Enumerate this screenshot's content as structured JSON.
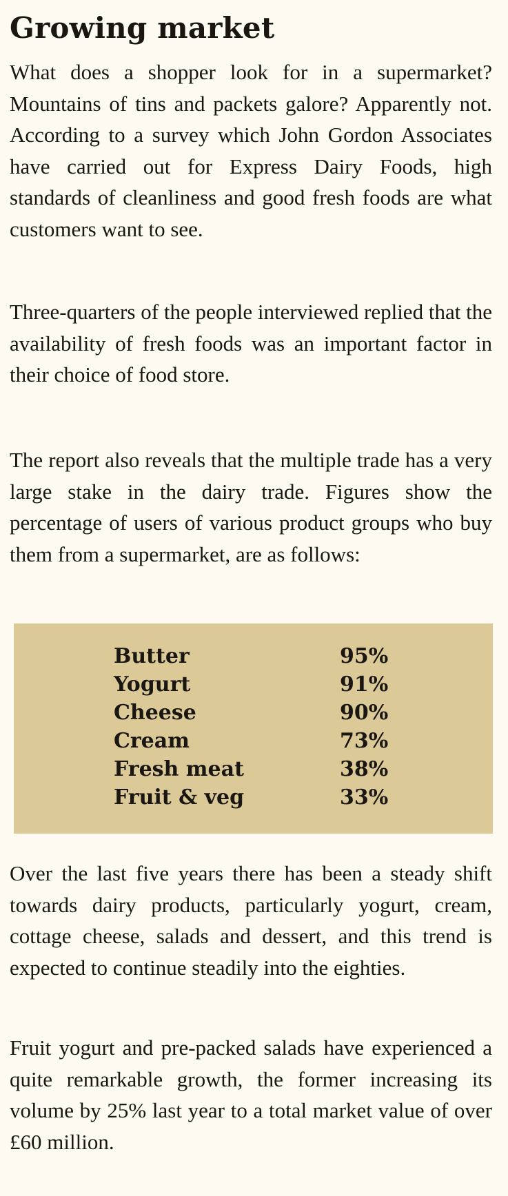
{
  "article": {
    "title": "Growing market",
    "paragraphs_before": [
      "What does a shopper look for in a supermarket? Mountains of tins and packets galore? Apparently not. According to a survey which John Gordon Associates have carried out for Express Dairy Foods, high standards of cleanliness and good fresh foods are what customers want to see.",
      "Three-quarters of the people interviewed replied that the availability of fresh foods was an important factor in their choice of food store.",
      "The report also reveals that the multiple trade has a very large stake in the dairy trade. Figures show the percentage of users of various product groups who buy them from a supermarket, are as follows:"
    ],
    "table": {
      "background_color": "#dcc998",
      "rows": [
        {
          "product": "Butter",
          "share": "95%"
        },
        {
          "product": "Yogurt",
          "share": "91%"
        },
        {
          "product": "Cheese",
          "share": "90%"
        },
        {
          "product": "Cream",
          "share": "73%"
        },
        {
          "product": "Fresh meat",
          "share": "38%"
        },
        {
          "product": "Fruit & veg",
          "share": "33%"
        }
      ]
    },
    "paragraphs_after": [
      "Over the last five years there has been a steady shift towards dairy products, particularly yogurt, cream, cottage cheese, salads and dessert, and this trend is expected to continue steadily into the eighties.",
      "Fruit yogurt and pre-packed salads have experienced a quite remarkable growth, the former increasing its volume by 25% last year to a total market value of over £60 million."
    ]
  }
}
